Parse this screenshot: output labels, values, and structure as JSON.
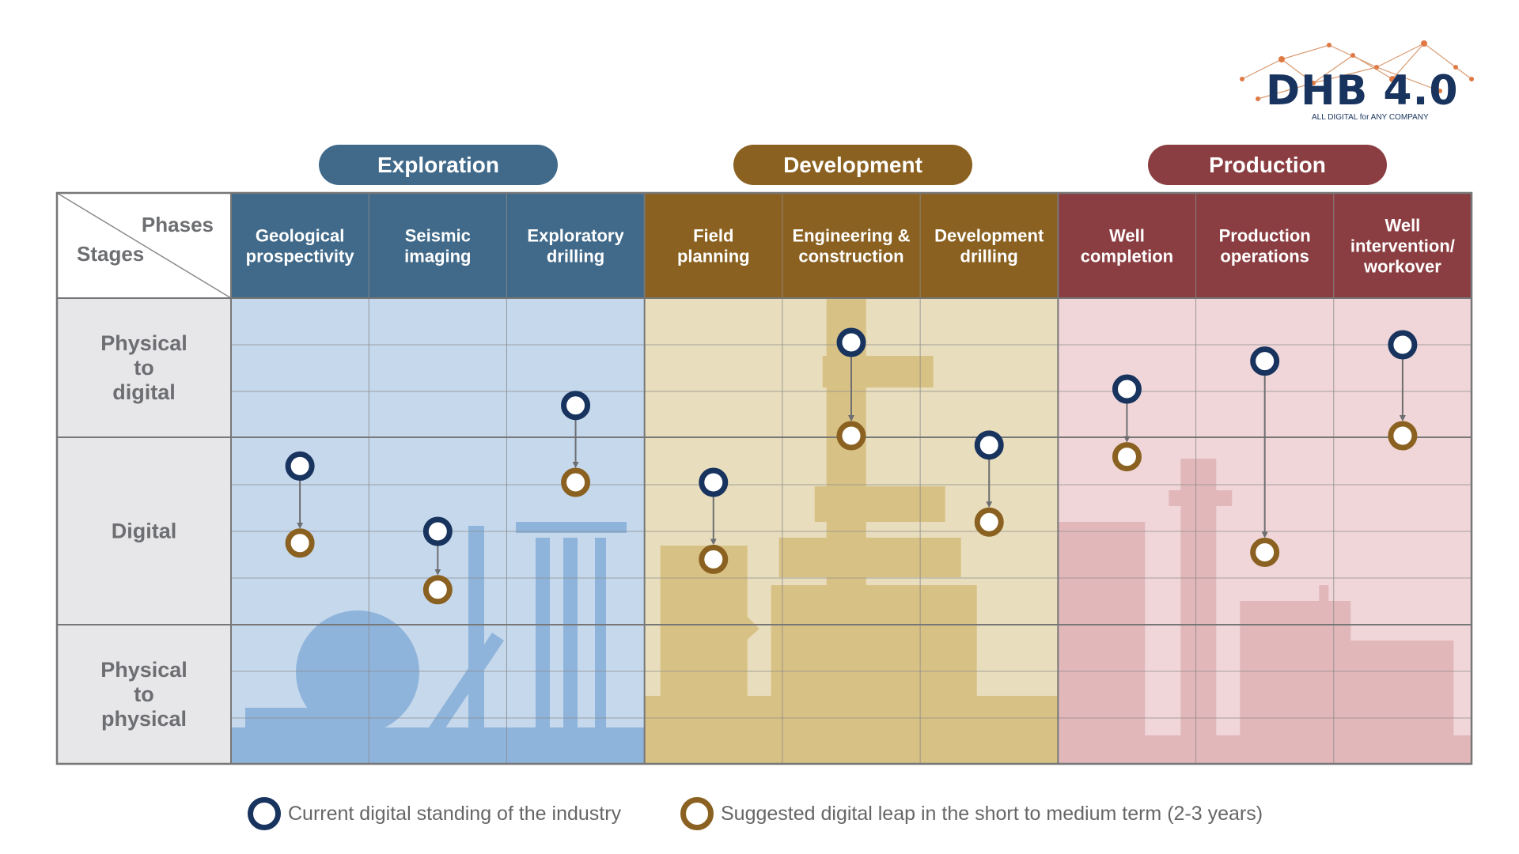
{
  "logo": {
    "title": "DHB 4.0",
    "tagline": "ALL DIGITAL for ANY COMPANY"
  },
  "phase_groups": [
    {
      "label": "Exploration",
      "color": "#416a8a"
    },
    {
      "label": "Development",
      "color": "#8a6120"
    },
    {
      "label": "Production",
      "color": "#8b3e42"
    }
  ],
  "corner": {
    "phases_label": "Phases",
    "stages_label": "Stages"
  },
  "phases": [
    {
      "label": [
        "Geological",
        "prospectivity"
      ],
      "group": 0
    },
    {
      "label": [
        "Seismic",
        "imaging"
      ],
      "group": 0
    },
    {
      "label": [
        "Exploratory",
        "drilling"
      ],
      "group": 0
    },
    {
      "label": [
        "Field",
        "planning"
      ],
      "group": 1
    },
    {
      "label": [
        "Engineering &",
        "construction"
      ],
      "group": 1
    },
    {
      "label": [
        "Development",
        "drilling"
      ],
      "group": 1
    },
    {
      "label": [
        "Well",
        "completion"
      ],
      "group": 2
    },
    {
      "label": [
        "Production",
        "operations"
      ],
      "group": 2
    },
    {
      "label": [
        "Well",
        "intervention/",
        "workover"
      ],
      "group": 2
    }
  ],
  "stages": [
    {
      "label": [
        "Physical",
        "to",
        "digital"
      ]
    },
    {
      "label": [
        "Digital"
      ]
    },
    {
      "label": [
        "Physical",
        "to",
        "physical"
      ]
    }
  ],
  "markers": [
    {
      "phase": 0,
      "current_level": 3.6,
      "suggested_level": 5.25
    },
    {
      "phase": 1,
      "current_level": 5.0,
      "suggested_level": 6.25
    },
    {
      "phase": 2,
      "current_level": 2.3,
      "suggested_level": 3.95
    },
    {
      "phase": 3,
      "current_level": 3.95,
      "suggested_level": 5.6
    },
    {
      "phase": 4,
      "current_level": 0.95,
      "suggested_level": 2.95
    },
    {
      "phase": 5,
      "current_level": 3.15,
      "suggested_level": 4.8
    },
    {
      "phase": 6,
      "current_level": 1.95,
      "suggested_level": 3.4
    },
    {
      "phase": 7,
      "current_level": 1.35,
      "suggested_level": 5.45
    },
    {
      "phase": 8,
      "current_level": 1.0,
      "suggested_level": 2.95
    }
  ],
  "legend": {
    "current_label": "Current digital standing of the industry",
    "suggested_label": "Suggested digital leap in the short to medium term (2-3 years)",
    "current_color": "#17335e",
    "suggested_color": "#8a6120"
  },
  "colors": {
    "header_text": "#ffffff",
    "stage_bg": "#e7e7e9",
    "stage_text": "#6d6e71",
    "grid_line": "#8a8a8a",
    "zone_bg": [
      "#c5d8ec",
      "#e8ddbd",
      "#f0d6d8"
    ],
    "zone_silhouette": [
      "#8fb4db",
      "#d8c185",
      "#e2b7ba"
    ]
  }
}
